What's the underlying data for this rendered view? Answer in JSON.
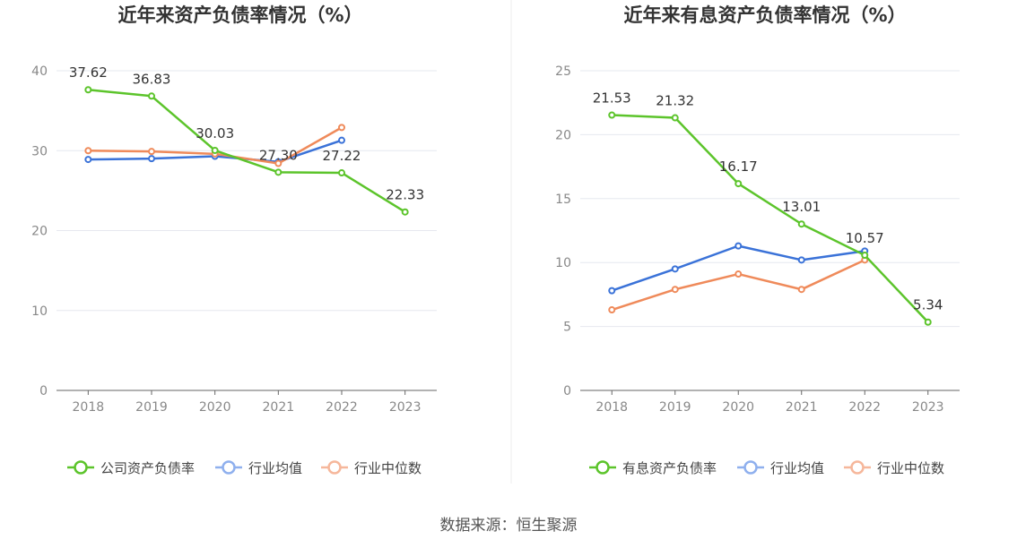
{
  "colors": {
    "company": "#5cc42b",
    "avg": "#3a72d8",
    "median": "#ef8a5a",
    "avg_legend": "#8fb0ee",
    "median_legend": "#f6b79b",
    "grid": "#e6e8ef",
    "axis": "#666666"
  },
  "source": "数据来源：恒生聚源",
  "chart_data": [
    {
      "type": "line",
      "title": "近年来资产负债率情况（%）",
      "categories": [
        "2018",
        "2019",
        "2020",
        "2021",
        "2022",
        "2023"
      ],
      "ylim": [
        0,
        40
      ],
      "yticks": [
        "0",
        "10",
        "20",
        "30",
        "40"
      ],
      "grid": true,
      "legend_position": "bottom",
      "series": [
        {
          "name": "公司资产负债率",
          "values": [
            37.62,
            36.83,
            30.03,
            27.3,
            27.22,
            22.33
          ],
          "labels": [
            "37.62",
            "36.83",
            "30.03",
            "27.30",
            "27.22",
            "22.33"
          ]
        },
        {
          "name": "行业均值",
          "values": [
            28.9,
            29.0,
            29.3,
            28.6,
            31.3,
            null
          ]
        },
        {
          "name": "行业中位数",
          "values": [
            30.0,
            29.9,
            29.6,
            28.4,
            32.9,
            null
          ]
        }
      ]
    },
    {
      "type": "line",
      "title": "近年来有息资产负债率情况（%）",
      "categories": [
        "2018",
        "2019",
        "2020",
        "2021",
        "2022",
        "2023"
      ],
      "ylim": [
        0,
        25
      ],
      "yticks": [
        "0",
        "5",
        "10",
        "15",
        "20",
        "25"
      ],
      "grid": true,
      "legend_position": "bottom",
      "series": [
        {
          "name": "有息资产负债率",
          "values": [
            21.53,
            21.32,
            16.17,
            13.01,
            10.57,
            5.34
          ],
          "labels": [
            "21.53",
            "21.32",
            "16.17",
            "13.01",
            "10.57",
            "5.34"
          ]
        },
        {
          "name": "行业均值",
          "values": [
            7.8,
            9.5,
            11.3,
            10.2,
            10.9,
            null
          ]
        },
        {
          "name": "行业中位数",
          "values": [
            6.3,
            7.9,
            9.1,
            7.9,
            10.2,
            null
          ]
        }
      ]
    }
  ]
}
